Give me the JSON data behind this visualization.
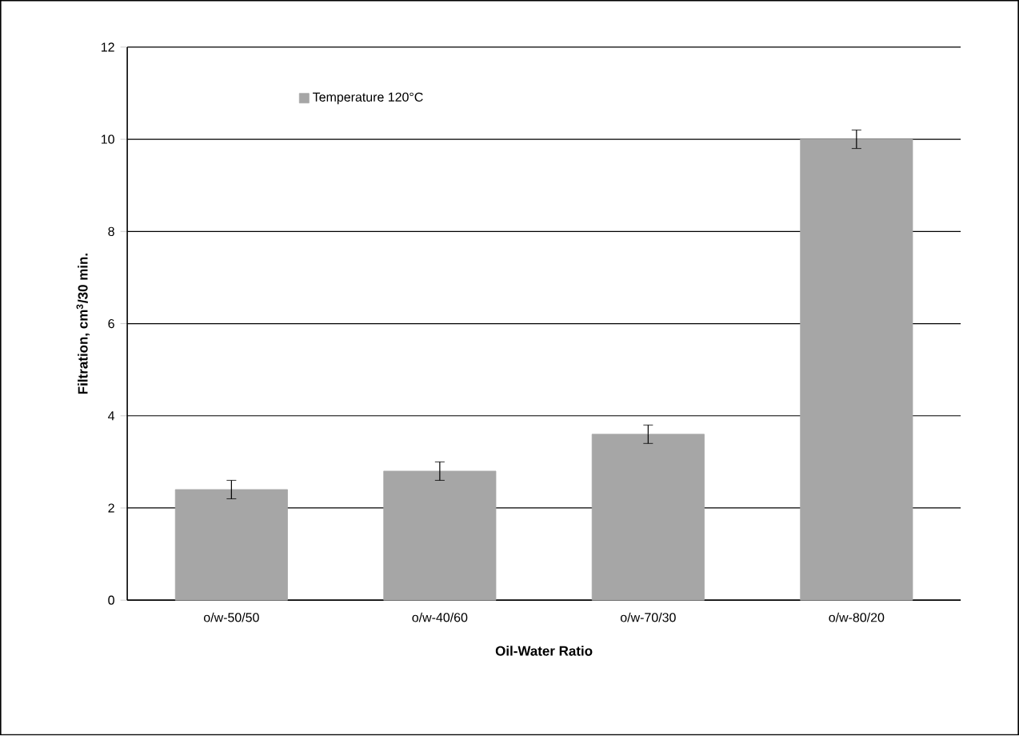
{
  "chart_data": {
    "type": "bar",
    "xlabel": "Oil-Water Ratio",
    "ylabel": "Filtration, cm$^{3}$/30 min.",
    "categories": [
      "o/w-50/50",
      "o/w-40/60",
      "o/w-70/30",
      "o/w-80/20"
    ],
    "series": [
      {
        "name": "Temperature 120°C",
        "color": "#a6a6a6",
        "values": [
          2.4,
          2.8,
          3.6,
          10.0
        ],
        "errors": [
          0.2,
          0.2,
          0.2,
          0.2
        ]
      }
    ],
    "ylim": [
      0,
      12
    ],
    "yticks": [
      0,
      2,
      4,
      6,
      8,
      10,
      12
    ],
    "grid": "y",
    "legend": "top left"
  }
}
